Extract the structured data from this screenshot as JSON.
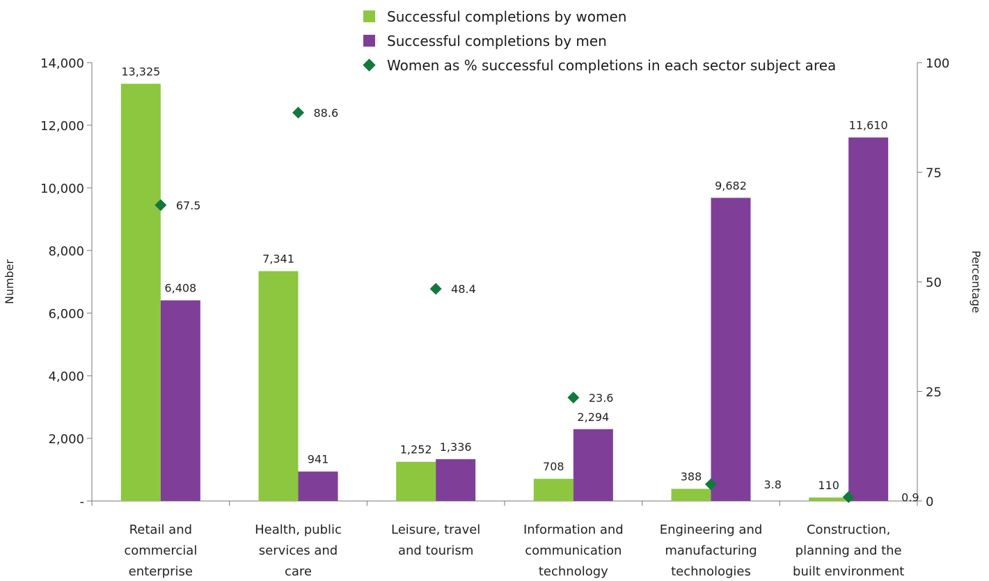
{
  "colors": {
    "women": "#8DC63F",
    "men": "#7F3F98",
    "pct": "#13783E",
    "axis": "#777777"
  },
  "legend": {
    "women": "Successful completions by women",
    "men": "Successful completions by men",
    "pct": "Women as % successful completions in each sector subject area"
  },
  "chart_data": {
    "type": "bar",
    "categories": [
      [
        "Retail and",
        "commercial",
        "enterprise"
      ],
      [
        "Health, public",
        "services and",
        "care"
      ],
      [
        "Leisure, travel",
        "and tourism"
      ],
      [
        "Information and",
        "communication",
        "technology"
      ],
      [
        "Engineering and",
        "manufacturing",
        "technologies"
      ],
      [
        "Construction,",
        "planning and the",
        "built environment"
      ]
    ],
    "series": [
      {
        "name": "Successful completions by women",
        "axis": "left",
        "values": [
          13325,
          7341,
          1252,
          708,
          388,
          110
        ],
        "labels": [
          "13,325",
          "7,341",
          "1,252",
          "708",
          "388",
          "110"
        ]
      },
      {
        "name": "Successful completions by men",
        "axis": "left",
        "values": [
          6408,
          941,
          1336,
          2294,
          9682,
          11610
        ],
        "labels": [
          "6,408",
          "941",
          "1,336",
          "2,294",
          "9,682",
          "11,610"
        ]
      },
      {
        "name": "Women as % successful completions in each sector subject area",
        "axis": "right",
        "type": "scatter",
        "values": [
          67.5,
          88.6,
          48.4,
          23.6,
          3.8,
          0.9
        ],
        "labels": [
          "67.5",
          "88.6",
          "48.4",
          "23.6",
          "3.8",
          "0.9"
        ]
      }
    ],
    "ylabel": "Number",
    "y2label": "Percentage",
    "ylim": [
      0,
      14000
    ],
    "y2lim": [
      0,
      100
    ],
    "yticks": [
      0,
      2000,
      4000,
      6000,
      8000,
      10000,
      12000,
      14000
    ],
    "ytick_labels": [
      "-",
      "2,000",
      "4,000",
      "6,000",
      "8,000",
      "10,000",
      "12,000",
      "14,000"
    ],
    "y2ticks": [
      0,
      25,
      50,
      75,
      100
    ],
    "y2tick_labels": [
      "0",
      "25",
      "50",
      "75",
      "100"
    ],
    "grid": false,
    "legend_position": "top"
  }
}
